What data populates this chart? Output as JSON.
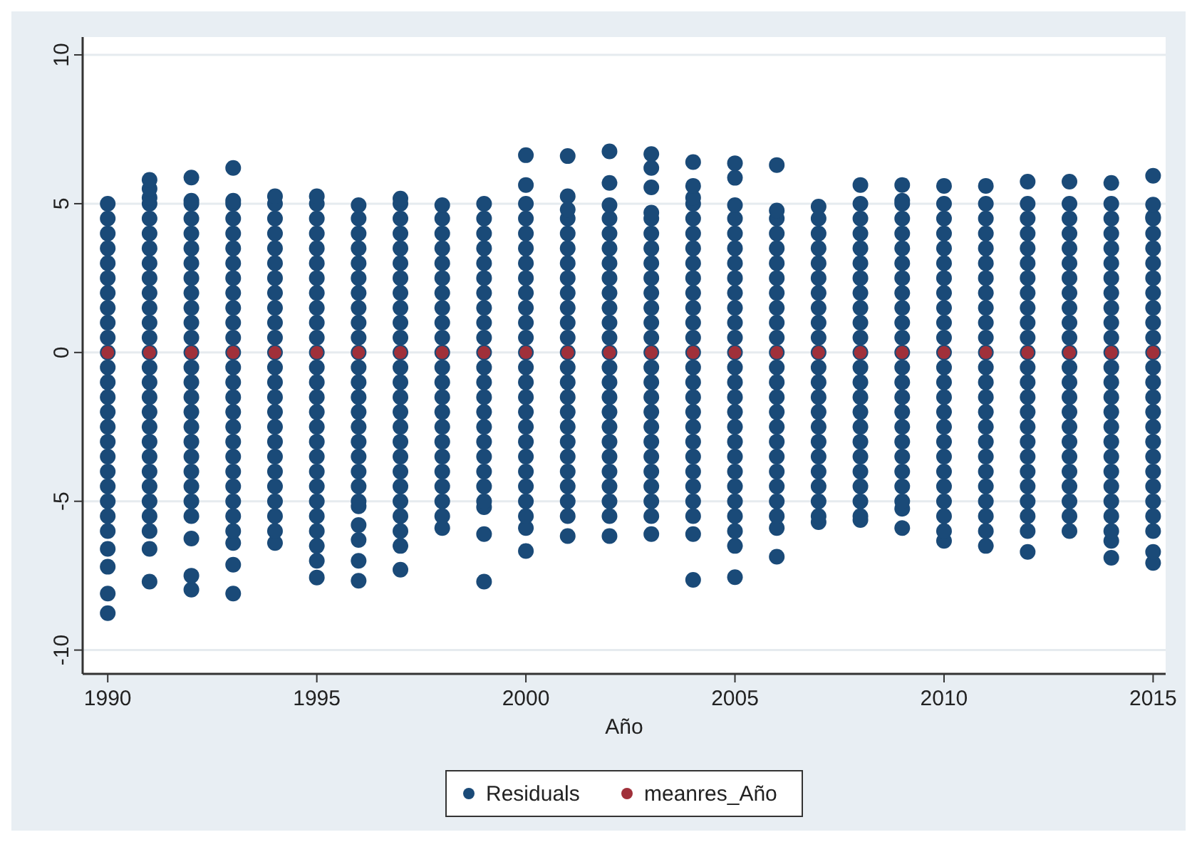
{
  "chart_data": {
    "type": "scatter",
    "xlabel": "Año",
    "xlim": [
      1989.4,
      2015.3
    ],
    "xticks": [
      1990,
      1995,
      2000,
      2005,
      2010,
      2015
    ],
    "ylim": [
      -10.8,
      10.6
    ],
    "yticks": [
      -10,
      -5,
      0,
      5,
      10
    ],
    "grid": "y",
    "legend": "bottom",
    "marker": "circle",
    "series": [
      {
        "name": "Residuals",
        "color": "#1a4a78",
        "x": [
          1990,
          1990,
          1990,
          1990,
          1990,
          1990,
          1990,
          1990,
          1990,
          1990,
          1990,
          1990,
          1990,
          1990,
          1990,
          1990,
          1990,
          1990,
          1990,
          1990,
          1990,
          1990,
          1990,
          1990,
          1990,
          1990,
          1990,
          1991,
          1991,
          1991,
          1991,
          1991,
          1991,
          1991,
          1991,
          1991,
          1991,
          1991,
          1991,
          1991,
          1991,
          1991,
          1991,
          1991,
          1991,
          1991,
          1991,
          1991,
          1991,
          1991,
          1991,
          1991,
          1991,
          1991,
          1991,
          1992,
          1992,
          1992,
          1992,
          1992,
          1992,
          1992,
          1992,
          1992,
          1992,
          1992,
          1992,
          1992,
          1992,
          1992,
          1992,
          1992,
          1992,
          1992,
          1992,
          1992,
          1992,
          1992,
          1992,
          1992,
          1992,
          1992,
          1993,
          1993,
          1993,
          1993,
          1993,
          1993,
          1993,
          1993,
          1993,
          1993,
          1993,
          1993,
          1993,
          1993,
          1993,
          1993,
          1993,
          1993,
          1993,
          1993,
          1993,
          1993,
          1993,
          1993,
          1993,
          1993,
          1993,
          1993,
          1994,
          1994,
          1994,
          1994,
          1994,
          1994,
          1994,
          1994,
          1994,
          1994,
          1994,
          1994,
          1994,
          1994,
          1994,
          1994,
          1994,
          1994,
          1994,
          1994,
          1994,
          1994,
          1994,
          1994,
          1994,
          1995,
          1995,
          1995,
          1995,
          1995,
          1995,
          1995,
          1995,
          1995,
          1995,
          1995,
          1995,
          1995,
          1995,
          1995,
          1995,
          1995,
          1995,
          1995,
          1995,
          1995,
          1995,
          1995,
          1995,
          1995,
          1995,
          1995,
          1996,
          1996,
          1996,
          1996,
          1996,
          1996,
          1996,
          1996,
          1996,
          1996,
          1996,
          1996,
          1996,
          1996,
          1996,
          1996,
          1996,
          1996,
          1996,
          1996,
          1996,
          1996,
          1996,
          1996,
          1996,
          1996,
          1997,
          1997,
          1997,
          1997,
          1997,
          1997,
          1997,
          1997,
          1997,
          1997,
          1997,
          1997,
          1997,
          1997,
          1997,
          1997,
          1997,
          1997,
          1997,
          1997,
          1997,
          1997,
          1997,
          1997,
          1997,
          1997,
          1998,
          1998,
          1998,
          1998,
          1998,
          1998,
          1998,
          1998,
          1998,
          1998,
          1998,
          1998,
          1998,
          1998,
          1998,
          1998,
          1998,
          1998,
          1998,
          1998,
          1998,
          1998,
          1998,
          1999,
          1999,
          1999,
          1999,
          1999,
          1999,
          1999,
          1999,
          1999,
          1999,
          1999,
          1999,
          1999,
          1999,
          1999,
          1999,
          1999,
          1999,
          1999,
          1999,
          1999,
          1999,
          1999,
          1999,
          2000,
          2000,
          2000,
          2000,
          2000,
          2000,
          2000,
          2000,
          2000,
          2000,
          2000,
          2000,
          2000,
          2000,
          2000,
          2000,
          2000,
          2000,
          2000,
          2000,
          2000,
          2000,
          2000,
          2000,
          2000,
          2000,
          2001,
          2001,
          2001,
          2001,
          2001,
          2001,
          2001,
          2001,
          2001,
          2001,
          2001,
          2001,
          2001,
          2001,
          2001,
          2001,
          2001,
          2001,
          2001,
          2001,
          2001,
          2001,
          2001,
          2001,
          2001,
          2002,
          2002,
          2002,
          2002,
          2002,
          2002,
          2002,
          2002,
          2002,
          2002,
          2002,
          2002,
          2002,
          2002,
          2002,
          2002,
          2002,
          2002,
          2002,
          2002,
          2002,
          2002,
          2002,
          2002,
          2002,
          2003,
          2003,
          2003,
          2003,
          2003,
          2003,
          2003,
          2003,
          2003,
          2003,
          2003,
          2003,
          2003,
          2003,
          2003,
          2003,
          2003,
          2003,
          2003,
          2003,
          2003,
          2003,
          2003,
          2003,
          2003,
          2003,
          2004,
          2004,
          2004,
          2004,
          2004,
          2004,
          2004,
          2004,
          2004,
          2004,
          2004,
          2004,
          2004,
          2004,
          2004,
          2004,
          2004,
          2004,
          2004,
          2004,
          2004,
          2004,
          2004,
          2004,
          2004,
          2004,
          2004,
          2005,
          2005,
          2005,
          2005,
          2005,
          2005,
          2005,
          2005,
          2005,
          2005,
          2005,
          2005,
          2005,
          2005,
          2005,
          2005,
          2005,
          2005,
          2005,
          2005,
          2005,
          2005,
          2005,
          2005,
          2005,
          2005,
          2005,
          2006,
          2006,
          2006,
          2006,
          2006,
          2006,
          2006,
          2006,
          2006,
          2006,
          2006,
          2006,
          2006,
          2006,
          2006,
          2006,
          2006,
          2006,
          2006,
          2006,
          2006,
          2006,
          2006,
          2006,
          2006,
          2007,
          2007,
          2007,
          2007,
          2007,
          2007,
          2007,
          2007,
          2007,
          2007,
          2007,
          2007,
          2007,
          2007,
          2007,
          2007,
          2007,
          2007,
          2007,
          2007,
          2007,
          2007,
          2007,
          2008,
          2008,
          2008,
          2008,
          2008,
          2008,
          2008,
          2008,
          2008,
          2008,
          2008,
          2008,
          2008,
          2008,
          2008,
          2008,
          2008,
          2008,
          2008,
          2008,
          2008,
          2008,
          2008,
          2008,
          2009,
          2009,
          2009,
          2009,
          2009,
          2009,
          2009,
          2009,
          2009,
          2009,
          2009,
          2009,
          2009,
          2009,
          2009,
          2009,
          2009,
          2009,
          2009,
          2009,
          2009,
          2009,
          2009,
          2009,
          2009,
          2010,
          2010,
          2010,
          2010,
          2010,
          2010,
          2010,
          2010,
          2010,
          2010,
          2010,
          2010,
          2010,
          2010,
          2010,
          2010,
          2010,
          2010,
          2010,
          2010,
          2010,
          2010,
          2010,
          2010,
          2010,
          2011,
          2011,
          2011,
          2011,
          2011,
          2011,
          2011,
          2011,
          2011,
          2011,
          2011,
          2011,
          2011,
          2011,
          2011,
          2011,
          2011,
          2011,
          2011,
          2011,
          2011,
          2011,
          2011,
          2011,
          2011,
          2012,
          2012,
          2012,
          2012,
          2012,
          2012,
          2012,
          2012,
          2012,
          2012,
          2012,
          2012,
          2012,
          2012,
          2012,
          2012,
          2012,
          2012,
          2012,
          2012,
          2012,
          2012,
          2012,
          2012,
          2012,
          2013,
          2013,
          2013,
          2013,
          2013,
          2013,
          2013,
          2013,
          2013,
          2013,
          2013,
          2013,
          2013,
          2013,
          2013,
          2013,
          2013,
          2013,
          2013,
          2013,
          2013,
          2013,
          2013,
          2013,
          2014,
          2014,
          2014,
          2014,
          2014,
          2014,
          2014,
          2014,
          2014,
          2014,
          2014,
          2014,
          2014,
          2014,
          2014,
          2014,
          2014,
          2014,
          2014,
          2014,
          2014,
          2014,
          2014,
          2014,
          2014,
          2014,
          2015,
          2015,
          2015,
          2015,
          2015,
          2015,
          2015,
          2015,
          2015,
          2015,
          2015,
          2015,
          2015,
          2015,
          2015,
          2015,
          2015,
          2015,
          2015,
          2015,
          2015,
          2015,
          2015,
          2015,
          2015,
          2015,
          2015
        ],
        "values": [
          -8.76,
          -8.1,
          -7.2,
          -6.6,
          -6,
          -5.5,
          -5,
          -4.5,
          -4,
          -3.5,
          -3,
          -2.5,
          -2,
          -1.5,
          -1,
          -0.5,
          0,
          0.5,
          1,
          1.5,
          2,
          2.5,
          3,
          3.5,
          4,
          4.5,
          5,
          -7.7,
          -6.6,
          -6,
          -5.5,
          -5,
          -4.5,
          -4,
          -3.5,
          -3,
          -2.5,
          -2,
          -1.5,
          -1,
          -0.5,
          0,
          0.5,
          1,
          1.5,
          2,
          2.5,
          3,
          3.5,
          4,
          4.5,
          5,
          5.2,
          5.5,
          5.8,
          -7.97,
          -7.5,
          -6.25,
          -5.5,
          -5,
          -4.5,
          -4,
          -3.5,
          -3,
          -2.5,
          -2,
          -1.5,
          -1,
          -0.5,
          0,
          0.5,
          1,
          1.5,
          2,
          2.5,
          3,
          3.5,
          4,
          4.5,
          5,
          5.1,
          5.88,
          -8.1,
          -7.13,
          -6.4,
          -6,
          -5.5,
          -5,
          -4.5,
          -4,
          -3.5,
          -3,
          -2.5,
          -2,
          -1.5,
          -1,
          -0.5,
          0,
          0.5,
          1,
          1.5,
          2,
          2.5,
          3,
          3.5,
          4,
          4.5,
          5,
          5.1,
          6.2,
          -6.4,
          -6,
          -5.5,
          -5,
          -4.5,
          -4,
          -3.5,
          -3,
          -2.5,
          -2,
          -1.5,
          -1,
          -0.5,
          0,
          0.5,
          1,
          1.5,
          2,
          2.5,
          3,
          3.5,
          4,
          4.5,
          5,
          5.25,
          -7.56,
          -7,
          -6.5,
          -6,
          -5.5,
          -5,
          -4.5,
          -4,
          -3.5,
          -3,
          -2.5,
          -2,
          -1.5,
          -1,
          -0.5,
          0,
          0.5,
          1,
          1.5,
          2,
          2.5,
          3,
          3.5,
          4,
          4.5,
          5,
          5.25,
          -7.67,
          -7,
          -6.3,
          -5.8,
          -5.17,
          -5,
          -4.5,
          -4,
          -3.5,
          -3,
          -2.5,
          -2,
          -1.5,
          -1,
          -0.5,
          0,
          0.5,
          1,
          1.5,
          2,
          2.5,
          3,
          3.5,
          4,
          4.5,
          4.95,
          -7.3,
          -6.5,
          -6,
          -5.5,
          -5,
          -4.5,
          -4,
          -3.5,
          -3,
          -2.5,
          -2,
          -1.5,
          -1,
          -0.5,
          0,
          0.5,
          1,
          1.5,
          2,
          2.5,
          3,
          3.5,
          4,
          4.5,
          5,
          5.17,
          -5.9,
          -5.5,
          -5,
          -4.5,
          -4,
          -3.5,
          -3,
          -2.5,
          -2,
          -1.5,
          -1,
          -0.5,
          0,
          0.5,
          1,
          1.5,
          2,
          2.5,
          3,
          3.5,
          4,
          4.5,
          4.95,
          -7.7,
          -6.1,
          -5.2,
          -5,
          -4.5,
          -4,
          -3.5,
          -3,
          -2.5,
          -2,
          -1.5,
          -1,
          -0.5,
          0,
          0.5,
          1,
          1.5,
          2,
          2.5,
          3,
          3.5,
          4,
          4.5,
          5,
          -6.67,
          -5.9,
          -5.5,
          -5,
          -4.5,
          -4,
          -3.5,
          -3,
          -2.5,
          -2,
          -1.5,
          -1,
          -0.5,
          0,
          0.5,
          1,
          1.5,
          2,
          2.5,
          3,
          3.5,
          4,
          4.5,
          5,
          5.63,
          6.63,
          -6.17,
          -5.5,
          -5,
          -4.5,
          -4,
          -3.5,
          -3,
          -2.5,
          -2,
          -1.5,
          -1,
          -0.5,
          0,
          0.5,
          1,
          1.5,
          2,
          2.5,
          3,
          3.5,
          4,
          4.5,
          4.8,
          5.25,
          6.6,
          -6.17,
          -5.5,
          -5,
          -4.5,
          -4,
          -3.5,
          -3,
          -2.5,
          -2,
          -1.5,
          -1,
          -0.5,
          0,
          0.5,
          1,
          1.5,
          2,
          2.5,
          3,
          3.5,
          4,
          4.5,
          4.95,
          5.7,
          6.76,
          -6.1,
          -5.5,
          -5,
          -4.5,
          -4,
          -3.5,
          -3,
          -2.5,
          -2,
          -1.5,
          -1,
          -0.5,
          0,
          0.5,
          1,
          1.5,
          2,
          2.5,
          3,
          3.5,
          4,
          4.5,
          4.7,
          5.55,
          6.2,
          6.67,
          -7.64,
          -6.1,
          -5.5,
          -5,
          -4.5,
          -4,
          -3.5,
          -3,
          -2.5,
          -2,
          -1.5,
          -1,
          -0.5,
          0,
          0.5,
          1,
          1.5,
          2,
          2.5,
          3,
          3.5,
          4,
          4.5,
          5,
          5.2,
          5.6,
          6.4,
          -7.55,
          -6.5,
          -6,
          -5.5,
          -5,
          -4.5,
          -4,
          -3.5,
          -3,
          -2.5,
          -2,
          -1.5,
          -1,
          -0.5,
          0,
          0.5,
          1,
          1.5,
          2,
          2.5,
          3,
          3.5,
          4,
          4.5,
          4.95,
          5.87,
          6.36,
          -6.86,
          -5.9,
          -5.5,
          -5,
          -4.5,
          -4,
          -3.5,
          -3,
          -2.5,
          -2,
          -1.5,
          -1,
          -0.5,
          0,
          0.5,
          1,
          1.5,
          2,
          2.5,
          3,
          3.5,
          4,
          4.5,
          4.77,
          6.3,
          -5.7,
          -5.5,
          -5,
          -4.5,
          -4,
          -3.5,
          -3,
          -2.5,
          -2,
          -1.5,
          -1,
          -0.5,
          0,
          0.5,
          1,
          1.5,
          2,
          2.5,
          3,
          3.5,
          4,
          4.5,
          4.9,
          -5.63,
          -5.5,
          -5,
          -4.5,
          -4,
          -3.5,
          -3,
          -2.5,
          -2,
          -1.5,
          -1,
          -0.5,
          0,
          0.5,
          1,
          1.5,
          2,
          2.5,
          3,
          3.5,
          4,
          4.5,
          5,
          5.63,
          -5.9,
          -5.25,
          -5,
          -4.5,
          -4,
          -3.5,
          -3,
          -2.5,
          -2,
          -1.5,
          -1,
          -0.5,
          0,
          0.5,
          1,
          1.5,
          2,
          2.5,
          3,
          3.5,
          4,
          4.5,
          5,
          5.1,
          5.63,
          -6.33,
          -6,
          -5.5,
          -5,
          -4.5,
          -4,
          -3.5,
          -3,
          -2.5,
          -2,
          -1.5,
          -1,
          -0.5,
          0,
          0.5,
          1,
          1.5,
          2,
          2.5,
          3,
          3.5,
          4,
          4.5,
          5,
          5.6,
          -6.5,
          -6,
          -5.5,
          -5,
          -4.5,
          -4,
          -3.5,
          -3,
          -2.5,
          -2,
          -1.5,
          -1,
          -0.5,
          0,
          0.5,
          1,
          1.5,
          2,
          2.5,
          3,
          3.5,
          4,
          4.5,
          5,
          5.6,
          -6.7,
          -6,
          -5.5,
          -5,
          -4.5,
          -4,
          -3.5,
          -3,
          -2.5,
          -2,
          -1.5,
          -1,
          -0.5,
          0,
          0.5,
          1,
          1.5,
          2,
          2.5,
          3,
          3.5,
          4,
          4.5,
          5,
          5.74,
          -6,
          -5.5,
          -5,
          -4.5,
          -4,
          -3.5,
          -3,
          -2.5,
          -2,
          -1.5,
          -1,
          -0.5,
          0,
          0.5,
          1,
          1.5,
          2,
          2.5,
          3,
          3.5,
          4,
          4.5,
          5,
          5.74,
          -6.9,
          -6.33,
          -6,
          -5.5,
          -5,
          -4.5,
          -4,
          -3.5,
          -3,
          -2.5,
          -2,
          -1.5,
          -1,
          -0.5,
          0,
          0.5,
          1,
          1.5,
          2,
          2.5,
          3,
          3.5,
          4,
          4.5,
          5,
          5.7,
          -7.07,
          -6.7,
          -6,
          -5.5,
          -5,
          -4.5,
          -4,
          -3.5,
          -3,
          -2.5,
          -2,
          -1.5,
          -1,
          -0.5,
          0,
          0.5,
          1,
          1.5,
          2,
          2.5,
          3,
          3.5,
          4,
          4.5,
          4.55,
          4.97,
          5.94
        ]
      },
      {
        "name": "meanres_Año",
        "color": "#a0303a",
        "x": [
          1990,
          1991,
          1992,
          1993,
          1994,
          1995,
          1996,
          1997,
          1998,
          1999,
          2000,
          2001,
          2002,
          2003,
          2004,
          2005,
          2006,
          2007,
          2008,
          2009,
          2010,
          2011,
          2012,
          2013,
          2014,
          2015
        ],
        "values": [
          0,
          0,
          0,
          0,
          0,
          0,
          0,
          0,
          0,
          0,
          0,
          0,
          0,
          0,
          0,
          0,
          0,
          0,
          0,
          0,
          0,
          0,
          0,
          0,
          0,
          0
        ]
      }
    ]
  }
}
